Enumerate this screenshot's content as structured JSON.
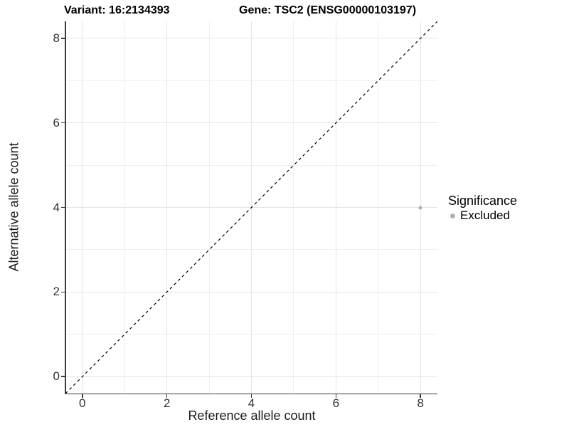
{
  "chart_data": {
    "type": "scatter",
    "title_left": "Variant: 16:2134393",
    "title_right": "Gene: TSC2 (ENSG00000103197)",
    "xlabel": "Reference allele count",
    "ylabel": "Alternative allele count",
    "xlim": [
      -0.4,
      8.4
    ],
    "ylim": [
      -0.4,
      8.4
    ],
    "xticks": [
      0,
      2,
      4,
      6,
      8
    ],
    "yticks": [
      0,
      2,
      4,
      6,
      8
    ],
    "minor_xticks": [
      1,
      3,
      5,
      7
    ],
    "minor_yticks": [
      1,
      3,
      5,
      7
    ],
    "grid": "major+minor",
    "reference_line": {
      "kind": "y=x",
      "style": "dashed",
      "color": "#000000"
    },
    "series": [
      {
        "name": "Excluded",
        "color": "#b0b0b0",
        "points": [
          {
            "x": 8,
            "y": 4
          }
        ]
      }
    ],
    "legend": {
      "title": "Significance",
      "position": "right",
      "entries": [
        {
          "label": "Excluded",
          "color": "#b0b0b0",
          "marker": "circle"
        }
      ]
    }
  },
  "colors": {
    "background": "#ffffff",
    "grid_major": "#e4e4e4",
    "grid_minor": "#efefef",
    "axis_line": "#3c3c3c",
    "tick_label": "#333333",
    "title": "#000000"
  }
}
